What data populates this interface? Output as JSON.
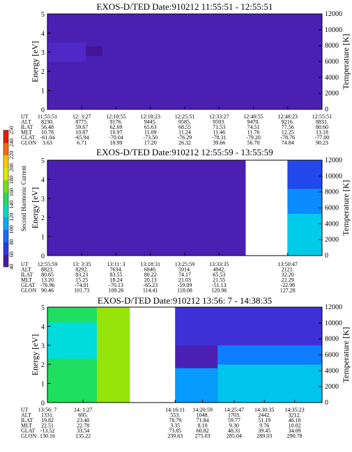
{
  "chart_data": [
    {
      "type": "heatmap",
      "title": "EXOS-D/TED   Date:910212   11:55:51 - 12:55:51",
      "ylabel": "Energy [eV]",
      "y2label": "Temperature [K]",
      "ylim": [
        0,
        5
      ],
      "yticks": [
        "0",
        "1",
        "2",
        "3",
        "4",
        "5"
      ],
      "y2lim": [
        0,
        12000
      ],
      "y2ticks": [
        "0",
        "2000",
        "4000",
        "6000",
        "8000",
        "10000",
        "12000"
      ],
      "gaps": [],
      "regions": [
        {
          "x0": 0.0,
          "x1": 0.14,
          "e0": 2.5,
          "e1": 3.5,
          "level": 55
        },
        {
          "x0": 0.14,
          "x1": 0.2,
          "e0": 2.8,
          "e1": 3.3,
          "level": 48
        }
      ],
      "orbit": {
        "rows": [
          "UT",
          "ALT",
          "ILAT",
          "MLT",
          "GLAT",
          "GLON"
        ],
        "cols": [
          {
            "x": 0.0,
            "vals": [
              "11:55:51",
              "8230.",
              "56.48",
              "10.78",
              "-61.04",
              "3.63"
            ]
          },
          {
            "x": 0.125,
            "vals": [
              "12: 3:27",
              "8775.",
              "59.67",
              "10.87",
              "-65.94",
              "6.71"
            ]
          },
          {
            "x": 0.25,
            "vals": [
              "12:10:55",
              "9176.",
              "62.69",
              "10.97",
              "-70.04",
              "10.99"
            ]
          },
          {
            "x": 0.375,
            "vals": [
              "12:18:23",
              "9445.",
              "65.63",
              "11.09",
              "-73.50",
              "17.20"
            ]
          },
          {
            "x": 0.5,
            "vals": [
              "12:25:51",
              "9585.",
              "68.55",
              "11.24",
              "-76.29",
              "26.32"
            ]
          },
          {
            "x": 0.625,
            "vals": [
              "12:33:27",
              "9593.",
              "71.53",
              "11.46",
              "-78.31",
              "39.66"
            ]
          },
          {
            "x": 0.75,
            "vals": [
              "12:40:55",
              "9470.",
              "74.51",
              "11.76",
              "-79.20",
              "56.70"
            ]
          },
          {
            "x": 0.875,
            "vals": [
              "12:48:23",
              "9216.",
              "77.56",
              "12.25",
              "-78.76",
              "74.84"
            ]
          },
          {
            "x": 1.0,
            "vals": [
              "12:55:51",
              "8831.",
              "80.60",
              "13.18",
              "-77.00",
              "90.23"
            ]
          }
        ]
      }
    },
    {
      "type": "heatmap",
      "title": "EXOS-D/TED   Date:910212   12:55:59 - 13:55:59",
      "ylabel": "Energy [eV]",
      "y2label": "Temperature [K]",
      "ylim": [
        0,
        5
      ],
      "yticks": [
        "0",
        "1",
        "2",
        "3",
        "4",
        "5"
      ],
      "y2lim": [
        0,
        12000
      ],
      "y2ticks": [
        "0",
        "2000",
        "4000",
        "6000",
        "8000",
        "10000",
        "12000"
      ],
      "gaps": [
        [
          0.722,
          0.874
        ]
      ],
      "regions": [
        {
          "x0": 0.874,
          "x1": 1.0,
          "e0": 0.0,
          "e1": 2.2,
          "level": 120
        },
        {
          "x0": 0.874,
          "x1": 1.0,
          "e0": 2.2,
          "e1": 3.5,
          "level": 100
        },
        {
          "x0": 0.874,
          "x1": 1.0,
          "e0": 3.5,
          "e1": 5.0,
          "level": 75
        }
      ],
      "orbit": {
        "rows": [
          "UT",
          "ALT",
          "ILAT",
          "MLT",
          "GLAT",
          "GLON"
        ],
        "cols": [
          {
            "x": 0.0,
            "vals": [
              "12:55:59",
              "8823.",
              "80.65",
              "13.20",
              "-76.96",
              "90.46"
            ]
          },
          {
            "x": 0.125,
            "vals": [
              "13: 3:35",
              "8292.",
              "83.23",
              "15.25",
              "-74.01",
              "101.73"
            ]
          },
          {
            "x": 0.25,
            "vals": [
              "13:11: 3",
              "7634.",
              "83.55",
              "18.24",
              "-70.13",
              "109.26"
            ]
          },
          {
            "x": 0.375,
            "vals": [
              "13:18:31",
              "6840.",
              "80.22",
              "20.13",
              "-65.23",
              "114.41"
            ]
          },
          {
            "x": 0.5,
            "vals": [
              "13:25:59",
              "5914.",
              "74.17",
              "21.03",
              "-59.09",
              "118.08"
            ]
          },
          {
            "x": 0.625,
            "vals": [
              "13:33:35",
              "4842.",
              "65.53",
              "21.55",
              "-51.13",
              "120.96"
            ]
          },
          {
            "x": 0.875,
            "vals": [
              "13:50:47",
              "2121.",
              "32.20",
              "22.29",
              "-22.98",
              "127.28"
            ]
          }
        ]
      },
      "colorbar": {
        "label": "Second Harmonic Current",
        "ticks": [
          "40",
          "60",
          "80",
          "100",
          "120",
          "140",
          "160",
          "180",
          "200",
          "220",
          "240",
          "250"
        ]
      }
    },
    {
      "type": "heatmap",
      "title": "EXOS-D/TED   Date:910212   13:56: 7 - 14:38:35",
      "ylabel": "Energy [eV]",
      "y2label": "Temperature [K]",
      "ylim": [
        0,
        5
      ],
      "yticks": [
        "0",
        "1",
        "2",
        "3",
        "4",
        "5"
      ],
      "y2lim": [
        0,
        12000
      ],
      "y2ticks": [
        "0",
        "2000",
        "4000",
        "6000",
        "8000",
        "10000",
        "12000"
      ],
      "gaps": [
        [
          0.3,
          0.465
        ]
      ],
      "regions": [
        {
          "x0": 0.0,
          "x1": 0.3,
          "e0": 0.0,
          "e1": 5.0,
          "level": 150
        },
        {
          "x0": 0.0,
          "x1": 0.18,
          "e0": 2.3,
          "e1": 4.2,
          "level": 125
        },
        {
          "x0": 0.18,
          "x1": 0.3,
          "e0": 0.0,
          "e1": 5.0,
          "level": 175
        },
        {
          "x0": 0.465,
          "x1": 0.62,
          "e0": 0.0,
          "e1": 1.8,
          "level": 105
        },
        {
          "x0": 0.62,
          "x1": 1.0,
          "e0": 0.0,
          "e1": 2.0,
          "level": 118
        },
        {
          "x0": 0.62,
          "x1": 1.0,
          "e0": 2.0,
          "e1": 3.0,
          "level": 95
        },
        {
          "x0": 0.465,
          "x1": 1.0,
          "e0": 3.0,
          "e1": 5.0,
          "level": 62
        }
      ],
      "orbit": {
        "rows": [
          "UT",
          "ALT",
          "ILAT",
          "MLT",
          "GLAT",
          "GLON"
        ],
        "cols": [
          {
            "x": 0.0,
            "vals": [
              "13:56: 7",
              "1331.",
              "19.82",
              "22.51",
              "-13.52",
              "130.16"
            ]
          },
          {
            "x": 0.13,
            "vals": [
              "14: 1:27",
              "695.",
              "23.40",
              "22.78",
              "33.54",
              "135.22"
            ]
          },
          {
            "x": 0.465,
            "vals": [
              "14:16:11",
              "553.",
              "78.79",
              "3.35",
              "73.85",
              "239.63"
            ]
          },
          {
            "x": 0.565,
            "vals": [
              "14:20:59",
              "1048.",
              "71.84",
              "8.10",
              "60.82",
              "275.03"
            ]
          },
          {
            "x": 0.68,
            "vals": [
              "14:25:47",
              "1703.",
              "59.77",
              "9.30",
              "48.31",
              "285.04"
            ]
          },
          {
            "x": 0.79,
            "vals": [
              "14:30:35",
              "2442.",
              "51.19",
              "9.76",
              "39.45",
              "289.03"
            ]
          },
          {
            "x": 0.9,
            "vals": [
              "14:35:23",
              "3212.",
              "46.18",
              "10.02",
              "34.09",
              "290.78"
            ]
          }
        ]
      }
    }
  ]
}
